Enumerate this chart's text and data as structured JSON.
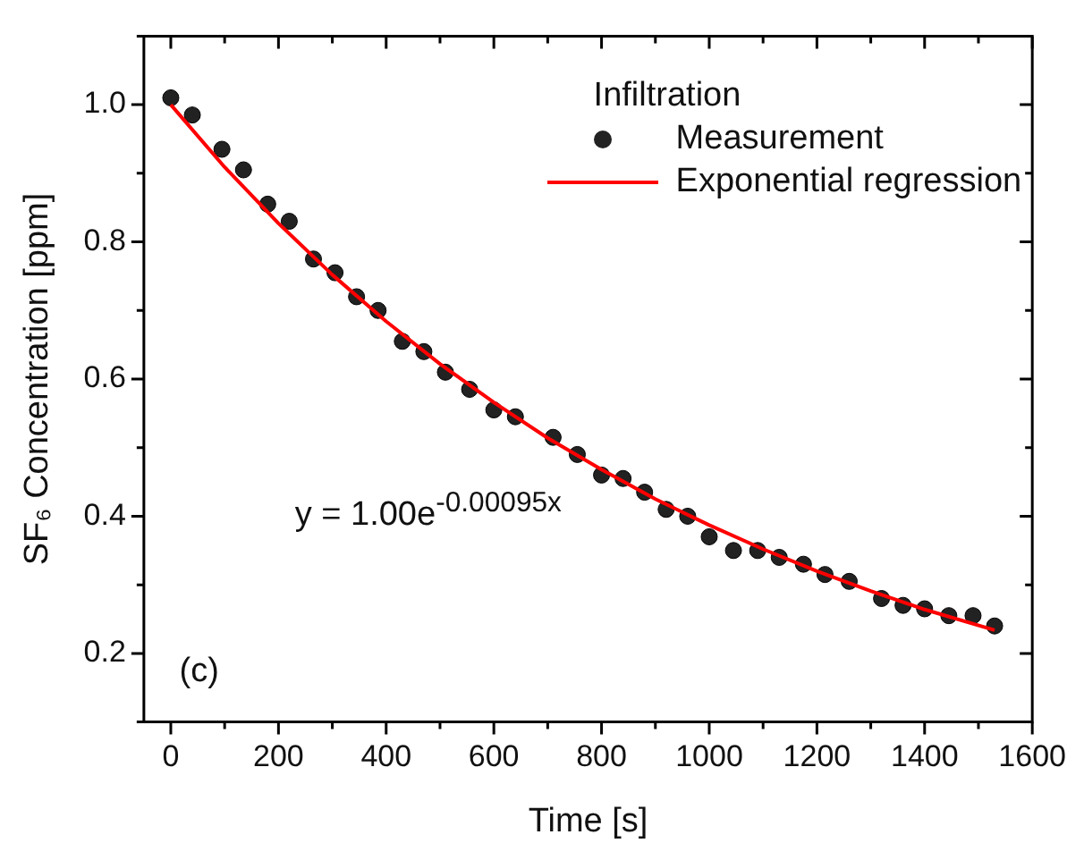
{
  "chart_data": {
    "type": "scatter",
    "xlabel": "Time [s]",
    "ylabel": "SF₆ Concentration [ppm]",
    "legend_title": "Infiltration",
    "xlim": [
      -50,
      1600
    ],
    "ylim": [
      0.1,
      1.1
    ],
    "xticks": [
      0,
      {
        "value": 100,
        "label": null
      },
      200,
      {
        "value": 300,
        "label": null
      },
      400,
      {
        "value": 500,
        "label": null
      },
      600,
      {
        "value": 700,
        "label": null
      },
      800,
      {
        "value": 900,
        "label": null
      },
      1000,
      {
        "value": 1100,
        "label": null
      },
      1200,
      {
        "value": 1300,
        "label": null
      },
      1400,
      {
        "value": 1500,
        "label": null
      },
      1600
    ],
    "yticks": [
      {
        "value": 0.1,
        "label": null
      },
      0.2,
      {
        "value": 0.3,
        "label": null
      },
      0.4,
      {
        "value": 0.5,
        "label": null
      },
      0.6,
      {
        "value": 0.7,
        "label": null
      },
      0.8,
      {
        "value": 0.9,
        "label": null
      },
      {
        "value": 1.0,
        "label": "1.0"
      },
      {
        "value": 1.1,
        "label": null
      }
    ],
    "grid": false,
    "legend": "top right",
    "marker": "circle",
    "annotations": [
      "y = 1.00e$^{-0.00095x}$",
      "(c)"
    ],
    "series": [
      {
        "name": "Measurement",
        "color": "#222222",
        "x": [
          0,
          40,
          95,
          135,
          180,
          220,
          265,
          305,
          345,
          385,
          430,
          470,
          510,
          555,
          600,
          640,
          710,
          755,
          800,
          840,
          880,
          920,
          960,
          1000,
          1045,
          1090,
          1130,
          1175,
          1215,
          1260,
          1320,
          1360,
          1400,
          1445,
          1490,
          1530
        ],
        "values": [
          1.01,
          0.985,
          0.935,
          0.905,
          0.855,
          0.83,
          0.775,
          0.755,
          0.72,
          0.7,
          0.655,
          0.64,
          0.61,
          0.585,
          0.555,
          0.545,
          0.515,
          0.49,
          0.46,
          0.455,
          0.435,
          0.41,
          0.4,
          0.37,
          0.35,
          0.35,
          0.34,
          0.33,
          0.315,
          0.305,
          0.28,
          0.27,
          0.265,
          0.255,
          0.255,
          0.24
        ]
      },
      {
        "name": "Exponential regression",
        "type": "line",
        "color": "#ff0000",
        "line_style": "solid",
        "marker": "none",
        "x": [
          0,
          100,
          200,
          300,
          400,
          500,
          600,
          700,
          800,
          900,
          1000,
          1100,
          1200,
          1300,
          1400,
          1530
        ],
        "values": [
          1.0,
          0.909,
          0.827,
          0.752,
          0.684,
          0.622,
          0.566,
          0.514,
          0.468,
          0.425,
          0.387,
          0.352,
          0.32,
          0.291,
          0.264,
          0.234
        ]
      }
    ]
  }
}
